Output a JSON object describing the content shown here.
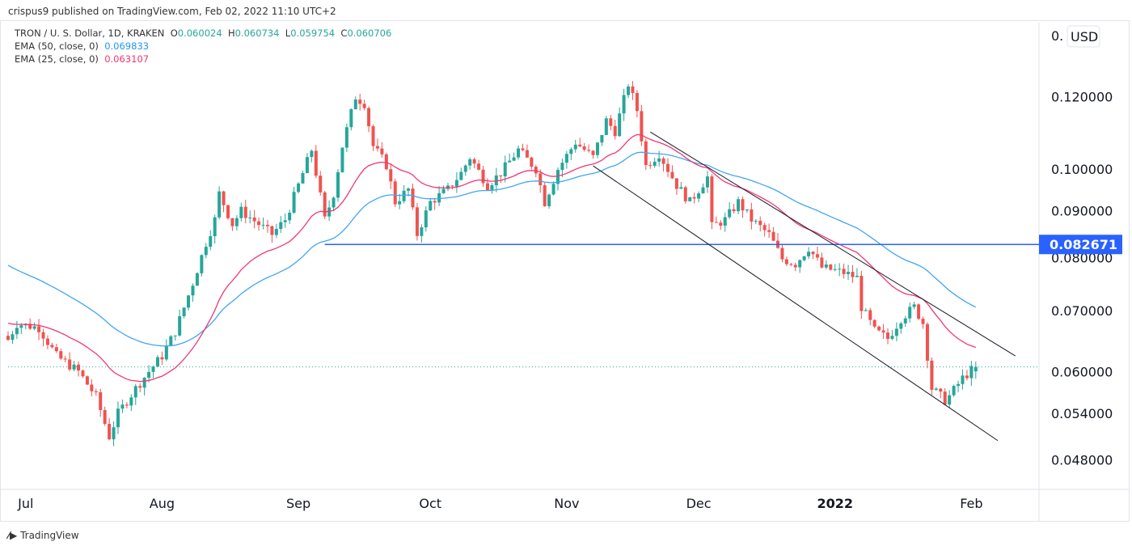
{
  "publisher": "crispus9 published on TradingView.com, Feb 02, 2022 11:10 UTC+2",
  "legend": {
    "symbol": "TRON / U. S. Dollar, 1D, KRAKEN",
    "o_label": "O",
    "o": "0.060024",
    "h_label": "H",
    "h": "0.060734",
    "l_label": "L",
    "l": "0.059754",
    "c_label": "C",
    "c": "0.060706",
    "ema50_label": "EMA (50, close, 0)",
    "ema50": "0.069833",
    "ema25_label": "EMA (25, close, 0)",
    "ema25": "0.063107"
  },
  "currency": "USD",
  "currency_prefix": "0.",
  "footer": "TradingView",
  "colors": {
    "up": "#26a69a",
    "down": "#ef5350",
    "ema50": "#42a5f5",
    "ema25": "#f23672",
    "level": "#2962ff",
    "channel": "#131722"
  },
  "chart_data": {
    "type": "candlestick",
    "scale": "log",
    "ylim": [
      0.044,
      0.135
    ],
    "xlim": [
      "2021-06-26",
      "2022-02-15"
    ],
    "x_ticks": [
      {
        "date": "2021-07-01",
        "label": "Jul"
      },
      {
        "date": "2021-08-01",
        "label": "Aug"
      },
      {
        "date": "2021-09-01",
        "label": "Sep"
      },
      {
        "date": "2021-10-01",
        "label": "Oct"
      },
      {
        "date": "2021-11-01",
        "label": "Nov"
      },
      {
        "date": "2021-12-01",
        "label": "Dec"
      },
      {
        "date": "2022-01-01",
        "label": "2022",
        "bold": true
      },
      {
        "date": "2022-02-01",
        "label": "Feb"
      }
    ],
    "y_ticks": [
      0.12,
      0.1,
      0.09,
      0.08,
      0.07,
      0.06,
      0.054,
      0.048
    ],
    "y_tick_labels": [
      "0.120000",
      "0.100000",
      "0.090000",
      "0.080000",
      "0.070000",
      "0.060000",
      "0.054000",
      "0.048000"
    ],
    "close_keypoints": [
      [
        "2021-06-27",
        0.065
      ],
      [
        "2021-06-29",
        0.0677
      ],
      [
        "2021-07-04",
        0.067
      ],
      [
        "2021-07-08",
        0.0624
      ],
      [
        "2021-07-13",
        0.06
      ],
      [
        "2021-07-17",
        0.0563
      ],
      [
        "2021-07-20",
        0.0509
      ],
      [
        "2021-07-22",
        0.054
      ],
      [
        "2021-07-26",
        0.0575
      ],
      [
        "2021-07-29",
        0.06
      ],
      [
        "2021-08-01",
        0.0624
      ],
      [
        "2021-08-04",
        0.0664
      ],
      [
        "2021-08-06",
        0.0705
      ],
      [
        "2021-08-08",
        0.075
      ],
      [
        "2021-08-11",
        0.083
      ],
      [
        "2021-08-13",
        0.088
      ],
      [
        "2021-08-14",
        0.094
      ],
      [
        "2021-08-17",
        0.087
      ],
      [
        "2021-08-19",
        0.09
      ],
      [
        "2021-08-23",
        0.087
      ],
      [
        "2021-08-26",
        0.0848
      ],
      [
        "2021-08-29",
        0.088
      ],
      [
        "2021-09-01",
        0.096
      ],
      [
        "2021-09-04",
        0.105
      ],
      [
        "2021-09-07",
        0.088
      ],
      [
        "2021-09-09",
        0.094
      ],
      [
        "2021-09-11",
        0.106
      ],
      [
        "2021-09-14",
        0.12
      ],
      [
        "2021-09-16",
        0.118
      ],
      [
        "2021-09-18",
        0.106
      ],
      [
        "2021-09-21",
        0.101
      ],
      [
        "2021-09-23",
        0.092
      ],
      [
        "2021-09-26",
        0.095
      ],
      [
        "2021-09-28",
        0.0848
      ],
      [
        "2021-10-01",
        0.092
      ],
      [
        "2021-10-05",
        0.095
      ],
      [
        "2021-10-08",
        0.099
      ],
      [
        "2021-10-10",
        0.103
      ],
      [
        "2021-10-14",
        0.096
      ],
      [
        "2021-10-17",
        0.099
      ],
      [
        "2021-10-21",
        0.105
      ],
      [
        "2021-10-25",
        0.1
      ],
      [
        "2021-10-27",
        0.092
      ],
      [
        "2021-10-30",
        0.1
      ],
      [
        "2021-11-03",
        0.107
      ],
      [
        "2021-11-07",
        0.103
      ],
      [
        "2021-11-10",
        0.113
      ],
      [
        "2021-11-12",
        0.11
      ],
      [
        "2021-11-15",
        0.124
      ],
      [
        "2021-11-17",
        0.116
      ],
      [
        "2021-11-19",
        0.1008
      ],
      [
        "2021-11-22",
        0.104
      ],
      [
        "2021-11-26",
        0.096
      ],
      [
        "2021-11-29",
        0.092
      ],
      [
        "2021-12-03",
        0.098
      ],
      [
        "2021-12-04",
        0.0865
      ],
      [
        "2021-12-07",
        0.088
      ],
      [
        "2021-12-10",
        0.092
      ],
      [
        "2021-12-13",
        0.088
      ],
      [
        "2021-12-17",
        0.0848
      ],
      [
        "2021-12-20",
        0.0797
      ],
      [
        "2021-12-23",
        0.0787
      ],
      [
        "2021-12-26",
        0.082
      ],
      [
        "2021-12-29",
        0.078
      ],
      [
        "2022-01-03",
        0.077
      ],
      [
        "2022-01-06",
        0.076
      ],
      [
        "2022-01-07",
        0.0706
      ],
      [
        "2022-01-10",
        0.0665
      ],
      [
        "2022-01-13",
        0.0652
      ],
      [
        "2022-01-16",
        0.0686
      ],
      [
        "2022-01-19",
        0.0706
      ],
      [
        "2022-01-21",
        0.0678
      ],
      [
        "2022-01-23",
        0.0575
      ],
      [
        "2022-01-26",
        0.0558
      ],
      [
        "2022-01-27",
        0.0564
      ],
      [
        "2022-01-30",
        0.059
      ],
      [
        "2022-02-01",
        0.0602
      ],
      [
        "2022-02-02",
        0.060706
      ]
    ],
    "ema_seed": {
      "ema50": 0.079,
      "ema25": 0.068
    },
    "horizontal_level": {
      "value": 0.082671,
      "label": "0.082671",
      "from": "2021-09-07"
    },
    "current_price": 0.060706,
    "channel": {
      "upper": [
        [
          "2021-11-20",
          0.1098
        ],
        [
          "2022-02-11",
          0.0624
        ]
      ],
      "lower": [
        [
          "2021-11-07",
          0.1008
        ],
        [
          "2022-02-07",
          0.0504
        ]
      ]
    }
  }
}
